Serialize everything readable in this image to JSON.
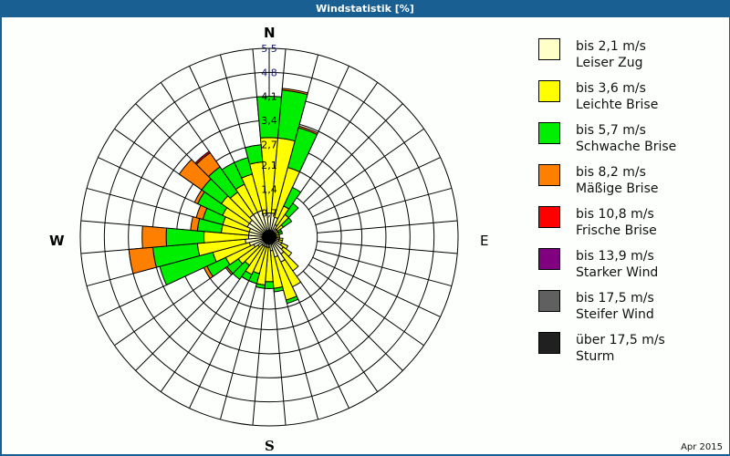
{
  "window": {
    "title": "Windstatistik [%]"
  },
  "compass": {
    "n": "N",
    "e": "E",
    "s": "S",
    "w": "W"
  },
  "footer": {
    "date": "Apr 2015"
  },
  "legend": [
    {
      "range": "bis 2,1 m/s",
      "name": "Leiser Zug",
      "color": "#ffffc8"
    },
    {
      "range": "bis 3,6 m/s",
      "name": "Leichte Brise",
      "color": "#ffff00"
    },
    {
      "range": "bis 5,7 m/s",
      "name": "Schwache Brise",
      "color": "#00ee00"
    },
    {
      "range": "bis 8,2 m/s",
      "name": "Mäßige Brise",
      "color": "#ff8000"
    },
    {
      "range": "bis 10,8 m/s",
      "name": "Frische Brise",
      "color": "#ff0000"
    },
    {
      "range": "bis 13,9 m/s",
      "name": "Starker Wind",
      "color": "#800080"
    },
    {
      "range": "bis 17,5 m/s",
      "name": "Steifer Wind",
      "color": "#606060"
    },
    {
      "range": "über 17,5 m/s",
      "name": "Sturm",
      "color": "#202020"
    }
  ],
  "chart_data": {
    "type": "wind-rose",
    "title": "Windstatistik [%]",
    "unit": "%",
    "radial_ticks": [
      "0,7",
      "1,4",
      "2,1",
      "2,7",
      "3,4",
      "4,1",
      "4,8",
      "5,5"
    ],
    "radial_max": 5.5,
    "sector_width_deg": 10,
    "directions_deg": [
      0,
      10,
      20,
      30,
      40,
      50,
      60,
      70,
      80,
      90,
      100,
      110,
      120,
      130,
      140,
      150,
      160,
      170,
      180,
      190,
      200,
      210,
      220,
      230,
      240,
      250,
      260,
      270,
      280,
      290,
      300,
      310,
      320,
      330,
      340,
      350
    ],
    "series": [
      {
        "name": "bis 2,1 m/s",
        "values": [
          0.7,
          0.7,
          0.6,
          0.4,
          0.3,
          0.3,
          0.2,
          0.2,
          0.2,
          0.2,
          0.3,
          0.3,
          0.4,
          0.5,
          0.6,
          0.8,
          0.6,
          0.4,
          0.3,
          0.3,
          0.3,
          0.3,
          0.3,
          0.4,
          0.5,
          0.6,
          0.7,
          0.6,
          0.6,
          0.6,
          0.7,
          0.7,
          0.8,
          0.8,
          0.8,
          0.7
        ]
      },
      {
        "name": "bis 3,6 m/s",
        "values": [
          2.2,
          2.2,
          1.5,
          0.6,
          0.5,
          0.2,
          0.1,
          0.1,
          0.1,
          0.1,
          0.1,
          0.1,
          0.2,
          0.3,
          0.6,
          0.8,
          1.3,
          1.1,
          1.0,
          1.1,
          0.8,
          0.9,
          0.7,
          0.7,
          0.9,
          1.1,
          1.4,
          1.3,
          0.8,
          0.8,
          0.8,
          1.0,
          0.8,
          0.9,
          1.1,
          1.5
        ]
      },
      {
        "name": "bis 5,7 m/s",
        "values": [
          1.2,
          1.4,
          1.2,
          0.6,
          0.4,
          0.3,
          0.1,
          0.1,
          0.0,
          0.0,
          0.0,
          0.0,
          0.0,
          0.0,
          0.0,
          0.0,
          0.1,
          0.1,
          0.2,
          0.1,
          0.3,
          0.2,
          0.5,
          0.4,
          0.6,
          1.6,
          1.3,
          1.1,
          0.7,
          0.6,
          0.8,
          0.7,
          0.9,
          0.7,
          0.5,
          0.5
        ]
      },
      {
        "name": "bis 8,2 m/s",
        "values": [
          0.0,
          0.05,
          0.05,
          0.0,
          0.0,
          0.0,
          0.0,
          0.0,
          0.0,
          0.0,
          0.0,
          0.0,
          0.0,
          0.0,
          0.0,
          0.0,
          0.0,
          0.0,
          0.0,
          0.0,
          0.0,
          0.0,
          0.0,
          0.05,
          0.1,
          0.0,
          0.7,
          0.7,
          0.2,
          0.2,
          0.1,
          0.8,
          0.5,
          0.0,
          0.0,
          0.0
        ]
      },
      {
        "name": "bis 10,8 m/s",
        "values": [
          0,
          0,
          0,
          0,
          0,
          0,
          0,
          0,
          0,
          0,
          0,
          0,
          0,
          0,
          0,
          0,
          0,
          0,
          0,
          0,
          0,
          0,
          0,
          0,
          0,
          0,
          0,
          0,
          0,
          0,
          0,
          0,
          0.05,
          0,
          0,
          0
        ]
      },
      {
        "name": "bis 13,9 m/s",
        "values": [
          0,
          0,
          0,
          0,
          0,
          0,
          0,
          0,
          0,
          0,
          0,
          0,
          0,
          0,
          0,
          0,
          0,
          0,
          0,
          0,
          0,
          0,
          0,
          0,
          0,
          0,
          0,
          0,
          0,
          0,
          0,
          0,
          0,
          0,
          0,
          0
        ]
      },
      {
        "name": "bis 17,5 m/s",
        "values": [
          0,
          0,
          0,
          0,
          0,
          0,
          0,
          0,
          0,
          0,
          0,
          0,
          0,
          0,
          0,
          0,
          0,
          0,
          0,
          0,
          0,
          0,
          0,
          0,
          0,
          0,
          0,
          0,
          0,
          0,
          0,
          0,
          0,
          0,
          0,
          0
        ]
      },
      {
        "name": "über 17,5 m/s",
        "values": [
          0,
          0,
          0,
          0,
          0,
          0,
          0,
          0,
          0,
          0,
          0,
          0,
          0,
          0,
          0,
          0,
          0,
          0,
          0,
          0,
          0,
          0,
          0,
          0,
          0,
          0,
          0,
          0,
          0,
          0,
          0,
          0,
          0,
          0,
          0,
          0
        ]
      }
    ],
    "legend_position": "right",
    "grid": true
  }
}
